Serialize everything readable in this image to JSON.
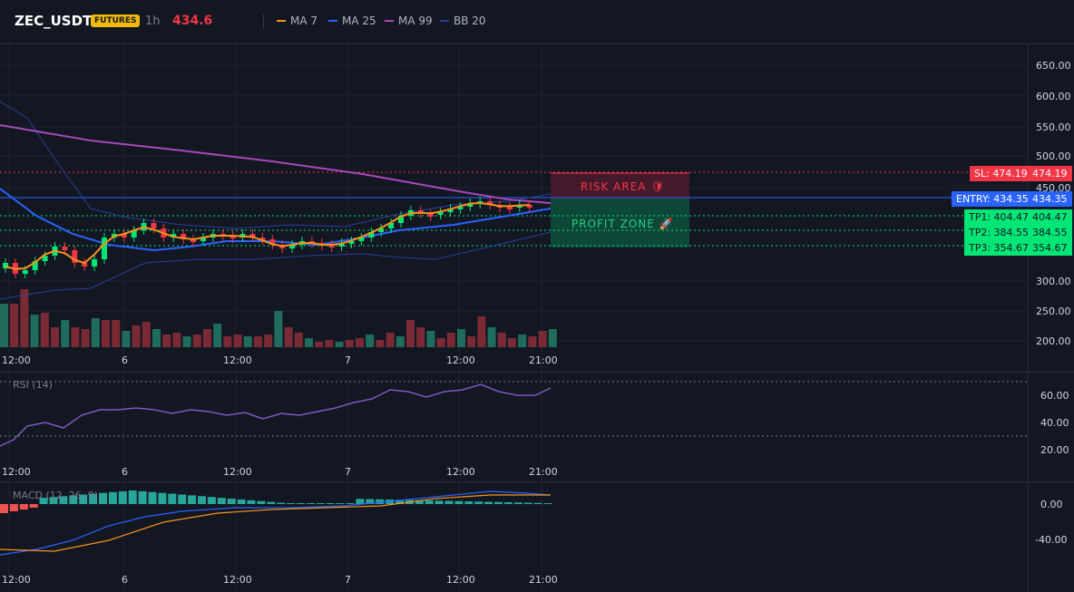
{
  "header": {
    "symbol": "ZEC_USDT",
    "badge": "FUTURES",
    "timeframe": "1h",
    "price": "434.6",
    "indicators": [
      {
        "label": "MA 7",
        "color": "#f7931a"
      },
      {
        "label": "MA 25",
        "color": "#2962ff"
      },
      {
        "label": "MA 99",
        "color": "#ab47bc"
      },
      {
        "label": "BB 20",
        "color": "#283e9e"
      }
    ]
  },
  "price_axis": [
    "650.00",
    "600.00",
    "550.00",
    "500.00",
    "450.00",
    "300.00",
    "250.00",
    "200.00"
  ],
  "time_axis": [
    "12:00",
    "6",
    "12:00",
    "7",
    "12:00",
    "21:00"
  ],
  "levels": {
    "sl": {
      "label": "SL: 474.19",
      "value": "474.19",
      "color": "#f23645"
    },
    "entry": {
      "label": "ENTRY: 434.35",
      "value": "434.35",
      "color": "#2962ff"
    },
    "tp1": {
      "label": "TP1: 404.47",
      "value": "404.47",
      "color": "#00e676"
    },
    "tp2": {
      "label": "TP2: 384.55",
      "value": "384.55",
      "color": "#00e676"
    },
    "tp3": {
      "label": "TP3: 354.67",
      "value": "354.67",
      "color": "#00e676"
    }
  },
  "zones": {
    "risk": "RISK AREA 🛡",
    "profit": "PROFIT ZONE 🚀"
  },
  "rsi": {
    "label": "RSI (14)",
    "axis": [
      "60.00",
      "40.00",
      "20.00"
    ]
  },
  "macd": {
    "label": "MACD (12, 26, 9)",
    "axis": [
      "0.00",
      "-40.00"
    ]
  }
}
